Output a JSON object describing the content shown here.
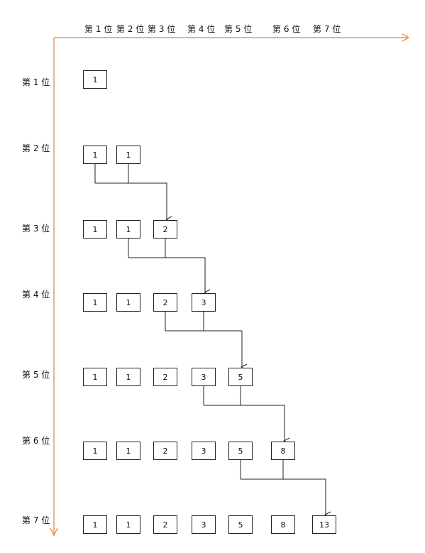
{
  "column_headers": [
    "第 1 位",
    "第 2 位",
    "第 3 位",
    "第 4 位",
    "第 5 位",
    "第 6 位",
    "第 7 位"
  ],
  "row_headers": [
    "第 1 位",
    "第 2 位",
    "第 3 位",
    "第 4 位",
    "第 5 位",
    "第 6 位",
    "第 7 位"
  ],
  "rows": [
    [
      "1"
    ],
    [
      "1",
      "1"
    ],
    [
      "1",
      "1",
      "2"
    ],
    [
      "1",
      "1",
      "2",
      "3"
    ],
    [
      "1",
      "1",
      "2",
      "3",
      "5"
    ],
    [
      "1",
      "1",
      "2",
      "3",
      "5",
      "8"
    ],
    [
      "1",
      "1",
      "2",
      "3",
      "5",
      "8",
      "13"
    ]
  ],
  "colors": {
    "axis": "#ED7D31",
    "box_border": "#222222",
    "connector": "#222222"
  }
}
